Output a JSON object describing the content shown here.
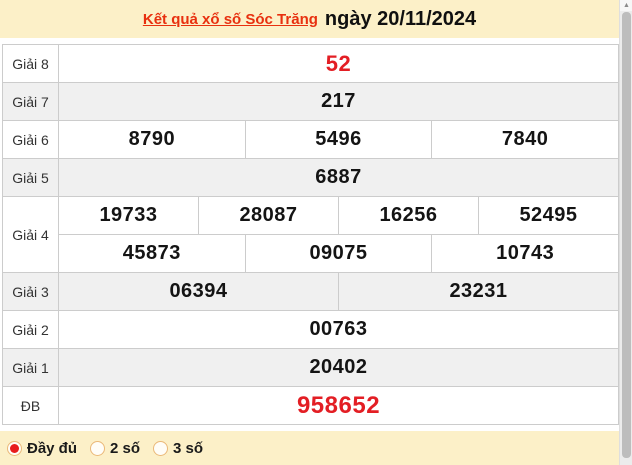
{
  "header": {
    "title_link": "Kết quả xổ số Sóc Trăng",
    "date_text": "ngày 20/11/2024"
  },
  "table": {
    "rows": [
      {
        "label": "Giải 8",
        "style": "red-lg",
        "lines": [
          [
            "52"
          ]
        ]
      },
      {
        "label": "Giải 7",
        "style": "",
        "lines": [
          [
            "217"
          ]
        ]
      },
      {
        "label": "Giải 6",
        "style": "",
        "lines": [
          [
            "8790",
            "5496",
            "7840"
          ]
        ]
      },
      {
        "label": "Giải 5",
        "style": "",
        "lines": [
          [
            "6887"
          ]
        ]
      },
      {
        "label": "Giải 4",
        "style": "",
        "lines": [
          [
            "19733",
            "28087",
            "16256",
            "52495"
          ],
          [
            "45873",
            "09075",
            "10743"
          ]
        ]
      },
      {
        "label": "Giải 3",
        "style": "",
        "lines": [
          [
            "06394",
            "23231"
          ]
        ]
      },
      {
        "label": "Giải 2",
        "style": "",
        "lines": [
          [
            "00763"
          ]
        ]
      },
      {
        "label": "Giải 1",
        "style": "",
        "lines": [
          [
            "20402"
          ]
        ]
      },
      {
        "label": "ĐB",
        "style": "red-xl",
        "lines": [
          [
            "958652"
          ]
        ]
      }
    ]
  },
  "footer": {
    "options": [
      {
        "label": "Đầy đủ",
        "selected": true
      },
      {
        "label": "2 số",
        "selected": false
      },
      {
        "label": "3 số",
        "selected": false
      }
    ]
  },
  "colors": {
    "accent_red": "#e31e24",
    "header_bg": "#fcf0c8",
    "row_shade": "#f0f0f0",
    "table_border": "#cccccc",
    "radio_border": "#eab878"
  }
}
